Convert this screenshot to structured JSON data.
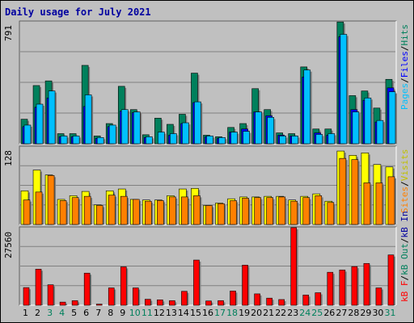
{
  "title": "Daily usage for July 2021",
  "colors": {
    "hits": "#00805c",
    "files": "#0000ff",
    "pages": "#00c0ff",
    "visits": "#ffff00",
    "sites": "#ff8000",
    "kbytes": "#ff0000",
    "weekend": "#00805c",
    "weekday": "#000000",
    "title": "#0000a0"
  },
  "legend": {
    "top": [
      {
        "text": "Hits",
        "color": "#00805c"
      },
      {
        "text": "Files",
        "color": "#0000ff"
      },
      {
        "text": "Pages",
        "color": "#00c0ff"
      }
    ],
    "middle": [
      {
        "text": "Visits",
        "color": "#c0c000"
      },
      {
        "text": "Sites",
        "color": "#ff8000"
      }
    ],
    "bottom": [
      {
        "text": "kB In",
        "color": "#0000a0"
      },
      {
        "text": "kB Out",
        "color": "#00805c"
      },
      {
        "text": "kB F",
        "color": "#ff0000"
      }
    ]
  },
  "chart_data": [
    {
      "type": "bar",
      "title": "Daily usage for July 2021",
      "axis_max_label": "791",
      "ylim": [
        0,
        791
      ],
      "categories": [
        "1",
        "2",
        "3",
        "4",
        "5",
        "6",
        "7",
        "8",
        "9",
        "10",
        "11",
        "12",
        "13",
        "14",
        "15",
        "16",
        "17",
        "18",
        "19",
        "20",
        "21",
        "22",
        "23",
        "24",
        "25",
        "26",
        "27",
        "28",
        "29",
        "30",
        "31"
      ],
      "series": [
        {
          "name": "Hits",
          "values": [
            158,
            375,
            405,
            65,
            65,
            505,
            50,
            130,
            370,
            220,
            58,
            165,
            125,
            190,
            455,
            55,
            45,
            105,
            130,
            355,
            220,
            70,
            65,
            495,
            95,
            95,
            785,
            310,
            340,
            230,
            415
          ]
        },
        {
          "name": "Files",
          "values": [
            110,
            235,
            295,
            45,
            45,
            240,
            35,
            110,
            210,
            200,
            40,
            0,
            55,
            130,
            265,
            45,
            35,
            75,
            95,
            205,
            180,
            55,
            50,
            430,
            70,
            55,
            690,
            220,
            280,
            140,
            360
          ]
        },
        {
          "name": "Pages",
          "values": [
            120,
            255,
            340,
            50,
            50,
            315,
            40,
            120,
            220,
            205,
            45,
            75,
            65,
            135,
            270,
            50,
            40,
            75,
            80,
            205,
            170,
            50,
            50,
            475,
            60,
            65,
            705,
            205,
            295,
            150,
            335
          ]
        }
      ]
    },
    {
      "type": "bar",
      "axis_max_label": "128",
      "ylim": [
        0,
        128
      ],
      "categories": [
        "1",
        "2",
        "3",
        "4",
        "5",
        "6",
        "7",
        "8",
        "9",
        "10",
        "11",
        "12",
        "13",
        "14",
        "15",
        "16",
        "17",
        "18",
        "19",
        "20",
        "21",
        "22",
        "23",
        "24",
        "25",
        "26",
        "27",
        "28",
        "29",
        "30",
        "31"
      ],
      "series": [
        {
          "name": "Visits",
          "values": [
            55,
            89,
            81,
            41,
            47,
            54,
            32,
            55,
            58,
            41,
            40,
            40,
            47,
            58,
            59,
            31,
            35,
            42,
            45,
            45,
            46,
            46,
            40,
            46,
            50,
            38,
            120,
            113,
            117,
            98,
            94
          ]
        },
        {
          "name": "Sites",
          "values": [
            40,
            53,
            80,
            39,
            44,
            46,
            31,
            48,
            46,
            41,
            38,
            39,
            45,
            45,
            47,
            31,
            34,
            39,
            43,
            44,
            44,
            45,
            38,
            44,
            47,
            36,
            108,
            106,
            68,
            68,
            78
          ]
        }
      ]
    },
    {
      "type": "bar",
      "axis_max_label": "27560",
      "ylim": [
        0,
        27560
      ],
      "categories": [
        "1",
        "2",
        "3",
        "4",
        "5",
        "6",
        "7",
        "8",
        "9",
        "10",
        "11",
        "12",
        "13",
        "14",
        "15",
        "16",
        "17",
        "18",
        "19",
        "20",
        "21",
        "22",
        "23",
        "24",
        "25",
        "26",
        "27",
        "28",
        "29",
        "30",
        "31"
      ],
      "series": [
        {
          "name": "kB F",
          "values": [
            6200,
            12700,
            7200,
            1100,
            1600,
            11300,
            400,
            6100,
            13500,
            6100,
            2100,
            1900,
            1600,
            4900,
            15900,
            1500,
            1600,
            5000,
            14100,
            4000,
            2500,
            2000,
            27300,
            3600,
            4400,
            11600,
            12400,
            13600,
            14700,
            6100,
            17700
          ]
        }
      ]
    }
  ]
}
